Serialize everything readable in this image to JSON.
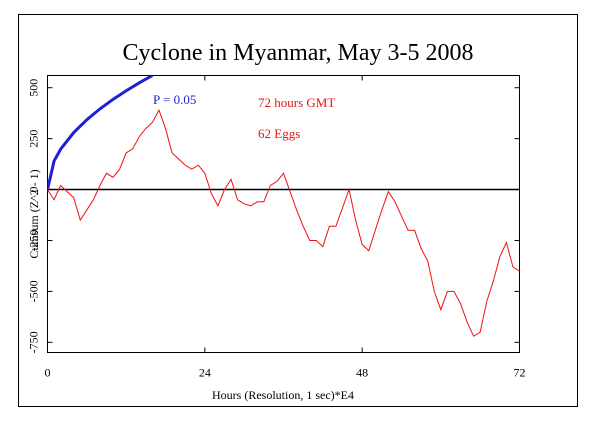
{
  "chart_data": {
    "type": "line",
    "title": "Cyclone in Myanmar, May 3-5 2008",
    "xlabel": "Hours (Resolution, 1 sec)*E4",
    "ylabel": "Cumsum (Z^2 - 1)",
    "annotations": [
      "P = 0.05",
      "72 hours GMT",
      "62 Eggs"
    ],
    "xlim": [
      0,
      72
    ],
    "xticks": [
      0,
      24,
      48,
      72
    ],
    "ylim": [
      -800,
      560
    ],
    "yticks": [
      -750,
      -500,
      -250,
      0,
      250,
      500
    ],
    "grid": false,
    "series": [
      {
        "name": "P = 0.05",
        "color": "#1f1fd6",
        "x": [
          0,
          1,
          2,
          4,
          6,
          8,
          10,
          12,
          14,
          16
        ],
        "values": [
          0,
          140,
          198,
          280,
          343,
          396,
          443,
          485,
          524,
          560
        ]
      },
      {
        "name": "72 hours GMT",
        "color": "#ee1111",
        "x": [
          0,
          1,
          2,
          3,
          4,
          5,
          6,
          7,
          8,
          9,
          10,
          11,
          12,
          13,
          14,
          15,
          16,
          17,
          18,
          19,
          20,
          21,
          22,
          23,
          24,
          25,
          26,
          27,
          28,
          29,
          30,
          31,
          32,
          33,
          34,
          35,
          36,
          37,
          38,
          39,
          40,
          41,
          42,
          43,
          44,
          45,
          46,
          47,
          48,
          49,
          50,
          51,
          52,
          53,
          54,
          55,
          56,
          57,
          58,
          59,
          60,
          61,
          62,
          63,
          64,
          65,
          66,
          67,
          68,
          69,
          70,
          71,
          72
        ],
        "values": [
          0,
          -50,
          20,
          -10,
          -40,
          -150,
          -100,
          -50,
          20,
          80,
          60,
          100,
          180,
          200,
          260,
          300,
          330,
          390,
          300,
          180,
          150,
          120,
          100,
          120,
          80,
          -20,
          -80,
          0,
          50,
          -50,
          -70,
          -80,
          -60,
          -60,
          20,
          40,
          80,
          -10,
          -100,
          -180,
          -250,
          -250,
          -280,
          -180,
          -180,
          -90,
          0,
          -150,
          -270,
          -300,
          -200,
          -100,
          -10,
          -60,
          -130,
          -200,
          -200,
          -290,
          -350,
          -500,
          -590,
          -500,
          -500,
          -560,
          -650,
          -720,
          -700,
          -550,
          -450,
          -330,
          -260,
          -380,
          -400
        ]
      }
    ]
  }
}
